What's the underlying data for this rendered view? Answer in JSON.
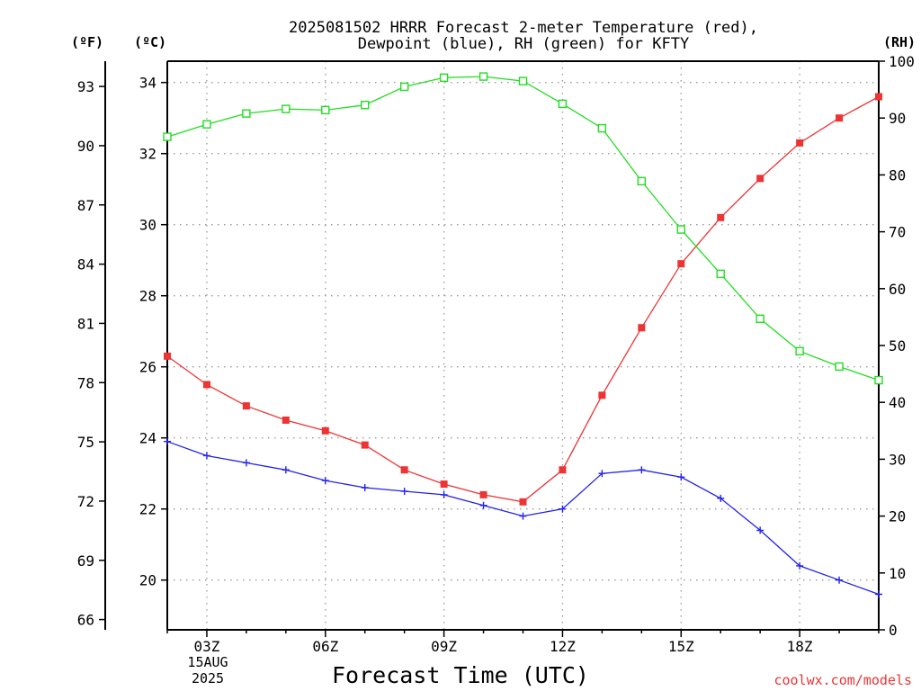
{
  "chart_data": {
    "type": "line",
    "title": "2025081502 HRRR Forecast 2-meter Temperature (red),",
    "subtitle": "Dewpoint (blue), RH (green) for KFTY",
    "xlabel": "Forecast Time (UTC)",
    "left_outer_axis_label": "(ºF)",
    "left_inner_axis_label": "(ºC)",
    "right_axis_label": "(RH)",
    "credit": "coolwx.com/models",
    "x": [
      "02Z",
      "03Z",
      "04Z",
      "05Z",
      "06Z",
      "07Z",
      "08Z",
      "09Z",
      "10Z",
      "11Z",
      "12Z",
      "13Z",
      "14Z",
      "15Z",
      "16Z",
      "17Z",
      "18Z",
      "19Z",
      "20Z"
    ],
    "x_tick_labels": [
      "03Z",
      "06Z",
      "09Z",
      "12Z",
      "15Z",
      "18Z"
    ],
    "x_date_label": [
      "15AUG",
      "2025"
    ],
    "ylim_c": [
      18.6,
      34.6
    ],
    "ylim_rh": [
      0,
      100
    ],
    "y_ticks_c": [
      "20",
      "22",
      "24",
      "26",
      "28",
      "30",
      "32",
      "34"
    ],
    "y_ticks_f": [
      "66",
      "69",
      "72",
      "75",
      "78",
      "81",
      "84",
      "87",
      "90",
      "93"
    ],
    "y_ticks_rh": [
      "0",
      "10",
      "20",
      "30",
      "40",
      "50",
      "60",
      "70",
      "80",
      "90",
      "100"
    ],
    "grid": true,
    "series": [
      {
        "name": "Temperature",
        "axis": "c",
        "color": "#ee3333",
        "marker": "filled-square",
        "values": [
          26.3,
          25.5,
          24.9,
          24.5,
          24.2,
          23.8,
          23.1,
          22.7,
          22.4,
          22.2,
          23.1,
          25.2,
          27.1,
          28.9,
          30.2,
          31.3,
          32.3,
          33.0,
          33.6
        ]
      },
      {
        "name": "Dewpoint",
        "axis": "c",
        "color": "#2222ee",
        "marker": "plus",
        "values": [
          23.9,
          23.5,
          23.3,
          23.1,
          22.8,
          22.6,
          22.5,
          22.4,
          22.1,
          21.8,
          22.0,
          23.0,
          23.1,
          22.9,
          22.3,
          21.4,
          20.4,
          20.0,
          19.6
        ]
      },
      {
        "name": "RH",
        "axis": "rh",
        "color": "#22dd22",
        "marker": "open-square",
        "values": [
          86.7,
          88.9,
          90.8,
          91.6,
          91.4,
          92.3,
          95.5,
          97.1,
          97.3,
          96.5,
          92.5,
          88.2,
          78.9,
          70.4,
          62.6,
          54.7,
          49.0,
          46.3,
          43.9
        ]
      }
    ]
  }
}
